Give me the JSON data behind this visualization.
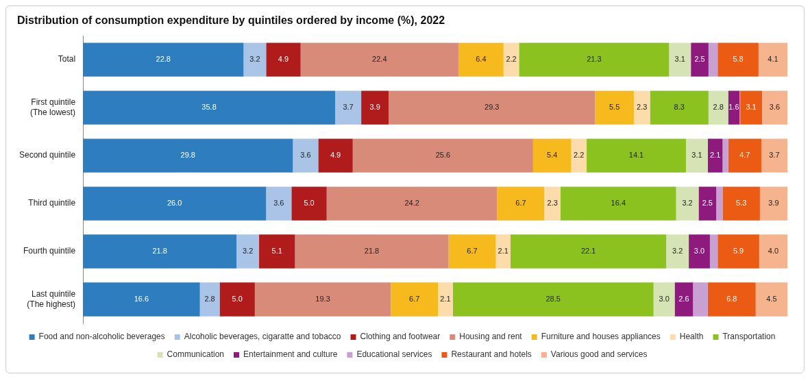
{
  "chart_data": {
    "type": "bar",
    "orientation": "horizontal",
    "stacked": true,
    "title": "Distribution of consumption expenditure by quintiles ordered by income (%), 2022",
    "categories": [
      "Total",
      "First quintile\n(The lowest)",
      "Second quintile",
      "Third quintile",
      "Fourth quintile",
      "Last quintile\n(The highest)"
    ],
    "xlim": [
      0,
      100
    ],
    "tick_labels": "y",
    "grid": false,
    "legend": "bottom",
    "series": [
      {
        "name": "Food and non-alcoholic beverages",
        "color": "#2e7ebf",
        "values": [
          22.8,
          35.8,
          29.8,
          26.0,
          21.8,
          16.6
        ],
        "value_labels": [
          "22.8",
          "35.8",
          "29.8",
          "26.0",
          "21.8",
          "16.6"
        ]
      },
      {
        "name": "Alcoholic beverages, cigaratte and tobacco",
        "color": "#a9c4e6",
        "values": [
          3.2,
          3.7,
          3.6,
          3.6,
          3.2,
          2.8
        ],
        "value_labels": [
          "3.2",
          "3.7",
          "3.6",
          "3.6",
          "3.2",
          "2.8"
        ]
      },
      {
        "name": "Clothing and footwear",
        "color": "#b01c1c",
        "values": [
          4.9,
          3.9,
          4.9,
          5.0,
          5.1,
          5.0
        ],
        "value_labels": [
          "4.9",
          "3.9",
          "4.9",
          "5.0",
          "5.1",
          "5.0"
        ]
      },
      {
        "name": "Housing and rent",
        "color": "#d98b7a",
        "values": [
          22.4,
          29.3,
          25.6,
          24.2,
          21.8,
          19.3
        ],
        "value_labels": [
          "22.4",
          "29.3",
          "25.6",
          "24.2",
          "21.8",
          "19.3"
        ]
      },
      {
        "name": "Furniture and houses appliances",
        "color": "#f6b91e",
        "values": [
          6.4,
          5.5,
          5.4,
          6.7,
          6.7,
          6.7
        ],
        "value_labels": [
          "6.4",
          "5.5",
          "5.4",
          "6.7",
          "6.7",
          "6.7"
        ]
      },
      {
        "name": "Health",
        "color": "#fbdcaa",
        "values": [
          2.2,
          2.3,
          2.2,
          2.3,
          2.1,
          2.1
        ],
        "value_labels": [
          "2.2",
          "2.3",
          "2.2",
          "2.3",
          "2.1",
          "2.1"
        ]
      },
      {
        "name": "Transportation",
        "color": "#8cc21f",
        "values": [
          21.3,
          8.3,
          14.1,
          16.4,
          22.1,
          28.5
        ],
        "value_labels": [
          "21.3",
          "8.3",
          "14.1",
          "16.4",
          "22.1",
          "28.5"
        ]
      },
      {
        "name": "Communication",
        "color": "#d5e3b5",
        "values": [
          3.1,
          2.8,
          3.1,
          3.2,
          3.2,
          3.0
        ],
        "value_labels": [
          "3.1",
          "2.8",
          "3.1",
          "3.2",
          "3.2",
          "3.0"
        ]
      },
      {
        "name": "Entertainment and culture",
        "color": "#8e1a7e",
        "values": [
          2.5,
          1.6,
          2.1,
          2.5,
          3.0,
          2.6
        ],
        "value_labels": [
          "2.5",
          "1.6",
          "2.1",
          "2.5",
          "3.0",
          "2.6"
        ]
      },
      {
        "name": "Educational services",
        "color": "#c9a0d2",
        "values": [
          1.3,
          0.1,
          0.8,
          0.9,
          1.1,
          2.1
        ],
        "value_labels": [
          null,
          null,
          null,
          null,
          null,
          null
        ]
      },
      {
        "name": "Restaurant and hotels",
        "color": "#ec5b13",
        "values": [
          5.8,
          3.1,
          4.7,
          5.3,
          5.9,
          6.8
        ],
        "value_labels": [
          "5.8",
          "3.1",
          "4.7",
          "5.3",
          "5.9",
          "6.8"
        ]
      },
      {
        "name": "Various good and services",
        "color": "#f6b48e",
        "values": [
          4.1,
          3.6,
          3.7,
          3.9,
          4.0,
          4.5
        ],
        "value_labels": [
          "4.1",
          "3.6",
          "3.7",
          "3.9",
          "4.0",
          "4.5"
        ]
      }
    ]
  }
}
